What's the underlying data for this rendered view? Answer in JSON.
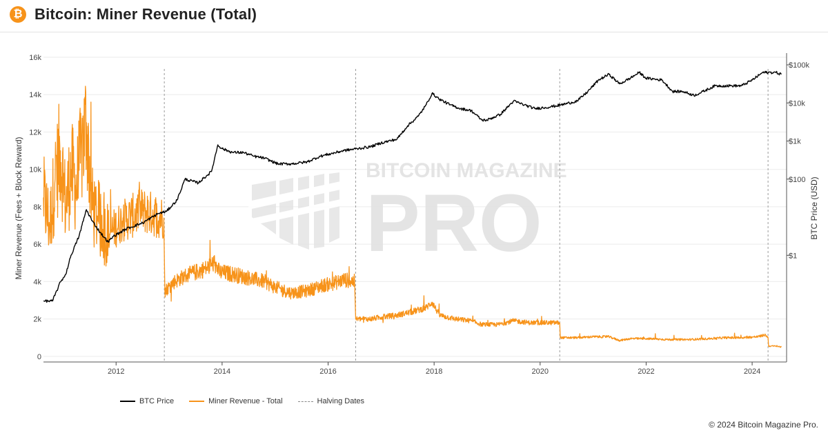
{
  "header": {
    "title": "Bitcoin: Miner Revenue (Total)",
    "logo_icon": "bitcoin-icon",
    "logo_glyph": "₿"
  },
  "watermark": {
    "line1": "BITCOIN MAGAZINE",
    "line2": "PRO"
  },
  "footer": {
    "copyright": "© 2024 Bitcoin Magazine Pro."
  },
  "legend": [
    {
      "label": "BTC Price",
      "color": "#000000",
      "style": "solid"
    },
    {
      "label": "Miner Revenue - Total",
      "color": "#f7931a",
      "style": "solid"
    },
    {
      "label": "Halving Dates",
      "color": "#888888",
      "style": "dashed"
    }
  ],
  "chart_data": {
    "type": "line",
    "title": "Bitcoin: Miner Revenue (Total)",
    "xlabel": "",
    "ylabel": "Miner Revenue (Fees + Block Reward)",
    "y2label": "BTC Price (USD)",
    "xlim": [
      2010.63,
      2024.65
    ],
    "ylim": [
      -0.3,
      16
    ],
    "y2scale": "log",
    "y2lim_log10": [
      -2.8,
      5.2
    ],
    "x_ticks": [
      2012,
      2014,
      2016,
      2018,
      2020,
      2022,
      2024
    ],
    "x_tick_labels": [
      "2012",
      "2014",
      "2016",
      "2018",
      "2020",
      "2022",
      "2024"
    ],
    "y_ticks": [
      0,
      2,
      4,
      6,
      8,
      10,
      12,
      14,
      16
    ],
    "y_tick_labels": [
      "0",
      "2k",
      "4k",
      "6k",
      "8k",
      "10k",
      "12k",
      "14k",
      "16k"
    ],
    "y2_ticks_log10": [
      0,
      2,
      3,
      4,
      5
    ],
    "y2_tick_labels": [
      "$1",
      "$100",
      "$1k",
      "$10k",
      "$100k"
    ],
    "grid": true,
    "legend_position": "bottom-left",
    "halving_dates": [
      2012.91,
      2016.52,
      2020.37,
      2024.3
    ],
    "series": [
      {
        "name": "BTC Price",
        "axis": "right",
        "color": "#000000",
        "x": [
          2010.63,
          2010.8,
          2010.95,
          2011.05,
          2011.15,
          2011.3,
          2011.44,
          2011.55,
          2011.7,
          2011.85,
          2011.95,
          2012.2,
          2012.5,
          2012.8,
          2012.95,
          2013.15,
          2013.3,
          2013.55,
          2013.8,
          2013.92,
          2014.0,
          2014.2,
          2014.4,
          2014.6,
          2014.8,
          2015.05,
          2015.3,
          2015.6,
          2015.85,
          2016.0,
          2016.3,
          2016.55,
          2016.8,
          2017.0,
          2017.3,
          2017.5,
          2017.7,
          2017.85,
          2017.96,
          2018.1,
          2018.3,
          2018.5,
          2018.7,
          2018.9,
          2019.0,
          2019.25,
          2019.5,
          2019.7,
          2019.9,
          2020.2,
          2020.4,
          2020.7,
          2020.9,
          2021.1,
          2021.3,
          2021.5,
          2021.7,
          2021.87,
          2022.0,
          2022.3,
          2022.5,
          2022.7,
          2022.9,
          2023.0,
          2023.3,
          2023.6,
          2023.8,
          2024.0,
          2024.2,
          2024.45,
          2024.55
        ],
        "values_log10": [
          -1.2,
          -1.2,
          -0.7,
          -0.5,
          0.0,
          0.5,
          1.2,
          0.9,
          0.6,
          0.35,
          0.5,
          0.7,
          0.85,
          1.1,
          1.15,
          1.45,
          2.0,
          1.9,
          2.2,
          2.9,
          2.8,
          2.7,
          2.7,
          2.6,
          2.55,
          2.4,
          2.4,
          2.45,
          2.6,
          2.65,
          2.75,
          2.8,
          2.85,
          2.95,
          3.05,
          3.4,
          3.65,
          3.95,
          4.25,
          4.1,
          3.95,
          3.85,
          3.8,
          3.55,
          3.55,
          3.7,
          4.05,
          3.95,
          3.85,
          3.9,
          3.95,
          4.05,
          4.3,
          4.6,
          4.75,
          4.5,
          4.65,
          4.8,
          4.65,
          4.6,
          4.3,
          4.3,
          4.2,
          4.25,
          4.45,
          4.45,
          4.45,
          4.6,
          4.8,
          4.8,
          4.75
        ]
      },
      {
        "name": "Miner Revenue - Total",
        "axis": "left",
        "color": "#f7931a",
        "x": [
          2010.63,
          2010.75,
          2010.85,
          2010.95,
          2011.05,
          2011.15,
          2011.25,
          2011.35,
          2011.44,
          2011.55,
          2011.65,
          2011.75,
          2011.85,
          2011.95,
          2012.1,
          2012.3,
          2012.5,
          2012.7,
          2012.9,
          2012.92,
          2013.1,
          2013.3,
          2013.5,
          2013.7,
          2013.85,
          2013.95,
          2014.2,
          2014.5,
          2014.8,
          2015.0,
          2015.3,
          2015.6,
          2015.9,
          2016.1,
          2016.3,
          2016.5,
          2016.52,
          2016.8,
          2017.0,
          2017.3,
          2017.6,
          2017.85,
          2017.96,
          2018.1,
          2018.4,
          2018.7,
          2018.9,
          2019.2,
          2019.5,
          2019.8,
          2020.1,
          2020.37,
          2020.38,
          2020.7,
          2021.0,
          2021.3,
          2021.5,
          2021.7,
          2022.0,
          2022.4,
          2022.8,
          2023.2,
          2023.5,
          2023.8,
          2024.1,
          2024.25,
          2024.3,
          2024.31,
          2024.45,
          2024.55
        ],
        "values": [
          8.5,
          7.0,
          9.5,
          11.0,
          8.0,
          10.0,
          9.0,
          11.0,
          12.5,
          8.0,
          7.5,
          6.8,
          6.5,
          6.8,
          7.2,
          7.5,
          7.8,
          7.6,
          7.4,
          3.5,
          4.0,
          4.3,
          4.5,
          4.7,
          5.0,
          4.5,
          4.4,
          4.2,
          4.0,
          3.7,
          3.4,
          3.5,
          3.8,
          3.9,
          4.1,
          4.0,
          2.0,
          2.0,
          2.1,
          2.2,
          2.4,
          2.6,
          2.9,
          2.2,
          2.0,
          1.9,
          1.7,
          1.7,
          1.9,
          1.8,
          1.8,
          1.8,
          1.0,
          1.0,
          1.05,
          1.05,
          0.85,
          0.95,
          0.95,
          0.9,
          0.9,
          0.95,
          1.0,
          1.0,
          1.05,
          1.15,
          1.0,
          0.55,
          0.55,
          0.5
        ]
      }
    ]
  }
}
